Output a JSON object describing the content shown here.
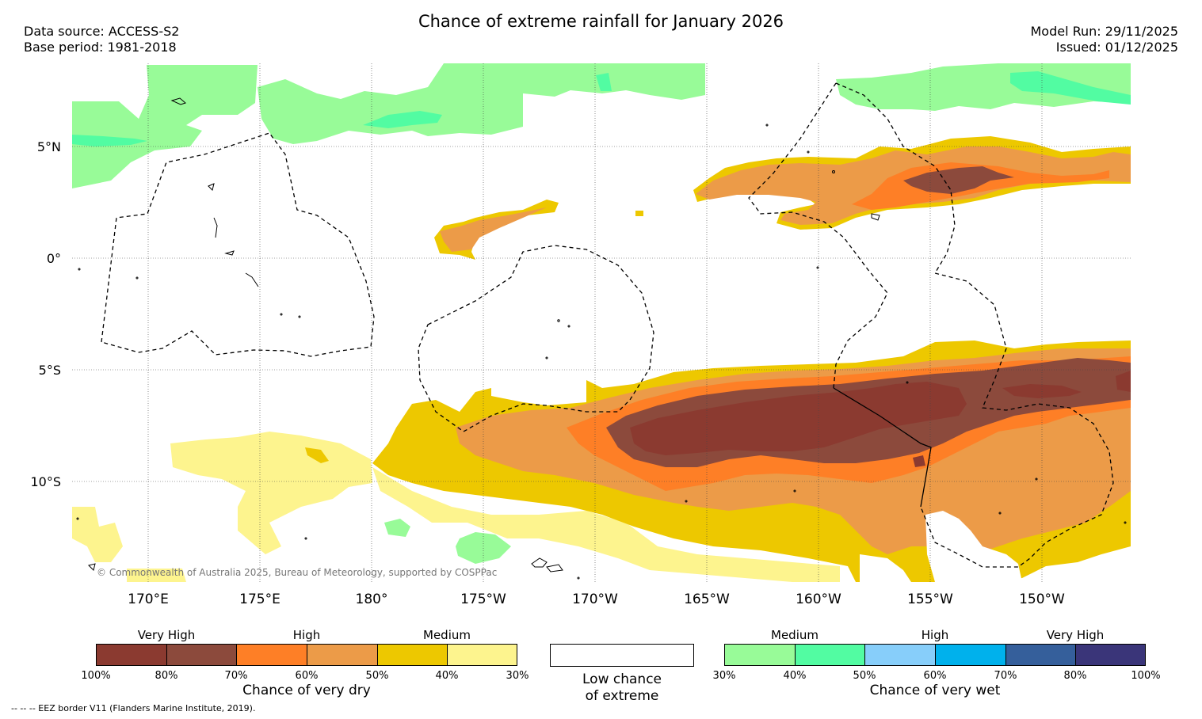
{
  "title": "Chance of extreme rainfall for January 2026",
  "header_left": {
    "data_source": "Data source: ACCESS-S2",
    "base_period": "Base period: 1981-2018"
  },
  "header_right": {
    "model_run": "Model Run: 29/11/2025",
    "issued": "Issued: 01/12/2025"
  },
  "map": {
    "lat_labels": [
      "5°N",
      "0°",
      "5°S",
      "10°S"
    ],
    "lon_labels": [
      "170°E",
      "175°E",
      "180°",
      "175°W",
      "170°W",
      "165°W",
      "160°W",
      "155°W",
      "150°W"
    ],
    "copyright": "© Commonwealth of Australia 2025, Bureau of Meteorology, supported by COSPPac"
  },
  "colors": {
    "dry_very_high_100_80": [
      "#8b3a30",
      "#8c4a3c"
    ],
    "dry_high_70_50": [
      "#fe7f26",
      "#ec9b48"
    ],
    "dry_medium_50_30": [
      "#edc800",
      "#fdf48e"
    ],
    "wet_medium_30_50": [
      "#98fb98",
      "#52fca2"
    ],
    "wet_high_50_70": [
      "#87cefa",
      "#00b1ec"
    ],
    "wet_very_high_70_100": [
      "#355f9b",
      "#3a3579"
    ]
  },
  "dry_legend": {
    "levels": [
      "Very High",
      "High",
      "Medium"
    ],
    "swatches": [
      "#8b3a30",
      "#8c4a3c",
      "#fe7f26",
      "#ec9b48",
      "#edc800",
      "#fdf48e"
    ],
    "ticks": [
      "100%",
      "80%",
      "70%",
      "60%",
      "50%",
      "40%",
      "30%"
    ],
    "caption": "Chance of very dry"
  },
  "low_legend": {
    "line1": "Low chance",
    "line2": "of extreme"
  },
  "wet_legend": {
    "levels": [
      "Medium",
      "High",
      "Very High"
    ],
    "swatches": [
      "#98fb98",
      "#52fca2",
      "#87cefa",
      "#00b1ec",
      "#355f9b",
      "#3a3579"
    ],
    "ticks": [
      "30%",
      "40%",
      "50%",
      "60%",
      "70%",
      "80%",
      "100%"
    ],
    "caption": "Chance of very wet"
  },
  "footnote": "--  --  -- EEZ border V11 (Flanders Marine Institute, 2019)."
}
